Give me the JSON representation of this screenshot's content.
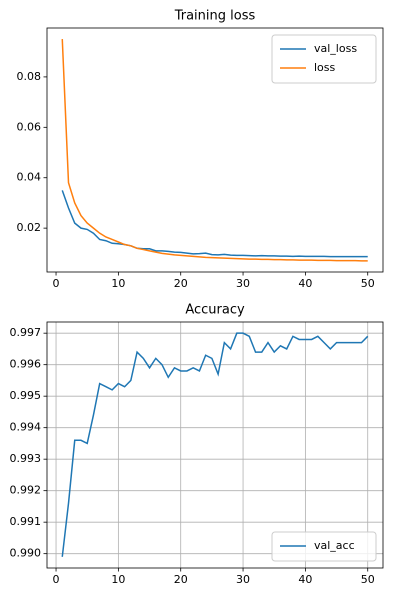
{
  "chart_data": [
    {
      "type": "line",
      "title": "Training loss",
      "x": [
        1,
        2,
        3,
        4,
        5,
        6,
        7,
        8,
        9,
        10,
        11,
        12,
        13,
        14,
        15,
        16,
        17,
        18,
        19,
        20,
        21,
        22,
        23,
        24,
        25,
        26,
        27,
        28,
        29,
        30,
        31,
        32,
        33,
        34,
        35,
        36,
        37,
        38,
        39,
        40,
        41,
        42,
        43,
        44,
        45,
        46,
        47,
        48,
        49,
        50
      ],
      "series": [
        {
          "name": "val_loss",
          "color": "#1f77b4",
          "values": [
            0.035,
            0.028,
            0.022,
            0.02,
            0.0195,
            0.018,
            0.0155,
            0.015,
            0.014,
            0.0138,
            0.0135,
            0.013,
            0.012,
            0.0118,
            0.0118,
            0.011,
            0.011,
            0.0108,
            0.0105,
            0.0104,
            0.0101,
            0.0098,
            0.0099,
            0.0101,
            0.0095,
            0.0094,
            0.0096,
            0.0093,
            0.0092,
            0.0092,
            0.0091,
            0.009,
            0.0091,
            0.009,
            0.009,
            0.0089,
            0.0089,
            0.0088,
            0.0089,
            0.0088,
            0.0088,
            0.0088,
            0.0088,
            0.0087,
            0.0087,
            0.0087,
            0.0087,
            0.0087,
            0.0087,
            0.0087
          ]
        },
        {
          "name": "loss",
          "color": "#ff7f0e",
          "values": [
            0.095,
            0.038,
            0.03,
            0.025,
            0.022,
            0.02,
            0.018,
            0.0165,
            0.0155,
            0.0145,
            0.0135,
            0.013,
            0.012,
            0.0115,
            0.011,
            0.0105,
            0.01,
            0.0097,
            0.0094,
            0.0092,
            0.009,
            0.0088,
            0.0086,
            0.0084,
            0.0083,
            0.0082,
            0.0081,
            0.008,
            0.0079,
            0.0078,
            0.0077,
            0.0077,
            0.0076,
            0.0076,
            0.0075,
            0.0075,
            0.0074,
            0.0074,
            0.0073,
            0.0073,
            0.0073,
            0.0072,
            0.0072,
            0.0072,
            0.0071,
            0.0071,
            0.0071,
            0.0071,
            0.007,
            0.007
          ]
        }
      ],
      "xlim": [
        -1.45,
        52.45
      ],
      "ylim": [
        0.0026,
        0.0994
      ],
      "xticks": [
        0,
        10,
        20,
        30,
        40,
        50
      ],
      "yticks": [
        0.02,
        0.04,
        0.06,
        0.08
      ],
      "grid": false,
      "legend": "upper right"
    },
    {
      "type": "line",
      "title": "Accuracy",
      "x": [
        1,
        2,
        3,
        4,
        5,
        6,
        7,
        8,
        9,
        10,
        11,
        12,
        13,
        14,
        15,
        16,
        17,
        18,
        19,
        20,
        21,
        22,
        23,
        24,
        25,
        26,
        27,
        28,
        29,
        30,
        31,
        32,
        33,
        34,
        35,
        36,
        37,
        38,
        39,
        40,
        41,
        42,
        43,
        44,
        45,
        46,
        47,
        48,
        49,
        50
      ],
      "series": [
        {
          "name": "val_acc",
          "color": "#1f77b4",
          "values": [
            0.9899,
            0.9916,
            0.9936,
            0.9936,
            0.9935,
            0.9944,
            0.9954,
            0.9953,
            0.9952,
            0.9954,
            0.9953,
            0.9955,
            0.9964,
            0.9962,
            0.9959,
            0.9962,
            0.996,
            0.9956,
            0.9959,
            0.9958,
            0.9958,
            0.9959,
            0.9958,
            0.9963,
            0.9962,
            0.9957,
            0.9967,
            0.9965,
            0.997,
            0.997,
            0.9969,
            0.9964,
            0.9964,
            0.9967,
            0.9964,
            0.9966,
            0.9965,
            0.9969,
            0.9968,
            0.9968,
            0.9968,
            0.9969,
            0.9967,
            0.9965,
            0.9967,
            0.9967,
            0.9967,
            0.9967,
            0.9967,
            0.9969
          ]
        }
      ],
      "xlim": [
        -1.45,
        52.45
      ],
      "ylim": [
        0.989545,
        0.997355
      ],
      "xticks": [
        0,
        10,
        20,
        30,
        40,
        50
      ],
      "yticks": [
        {
          "value": 0.99,
          "label": "0.990"
        },
        0.991,
        0.992,
        0.993,
        0.994,
        0.995,
        0.996,
        0.997
      ],
      "grid": true,
      "legend": "lower right"
    }
  ]
}
